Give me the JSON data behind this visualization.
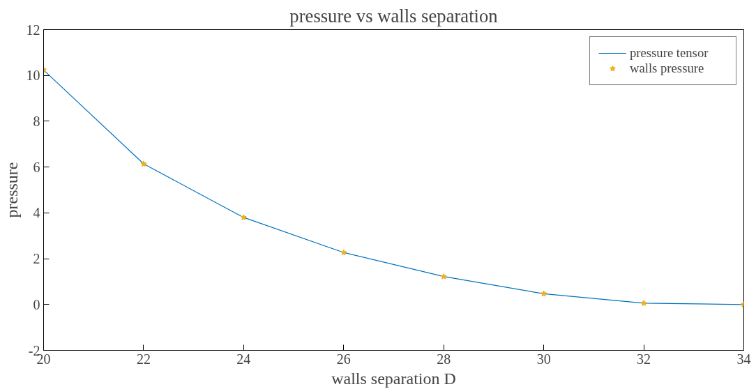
{
  "chart_data": {
    "type": "line",
    "title": "pressure vs walls separation",
    "xlabel": "walls separation D",
    "ylabel": "pressure",
    "x": [
      20,
      22,
      24,
      26,
      28,
      30,
      32,
      34
    ],
    "series": [
      {
        "name": "pressure tensor",
        "color": "#0072bd",
        "values": [
          10.24,
          6.14,
          3.8,
          2.27,
          1.22,
          0.47,
          0.06,
          0.0
        ]
      },
      {
        "name": "walls pressure",
        "type": "scatter",
        "marker": "star",
        "color": "#edb120",
        "values": [
          10.24,
          6.14,
          3.8,
          2.27,
          1.22,
          0.47,
          0.06,
          0.0
        ]
      }
    ],
    "xlim": [
      20,
      34
    ],
    "xticks": [
      20,
      22,
      24,
      26,
      28,
      30,
      32,
      34
    ],
    "ylim": [
      -2,
      12
    ],
    "yticks": [
      -2,
      0,
      2,
      4,
      6,
      8,
      10,
      12
    ],
    "grid": false,
    "legend": "top right"
  }
}
